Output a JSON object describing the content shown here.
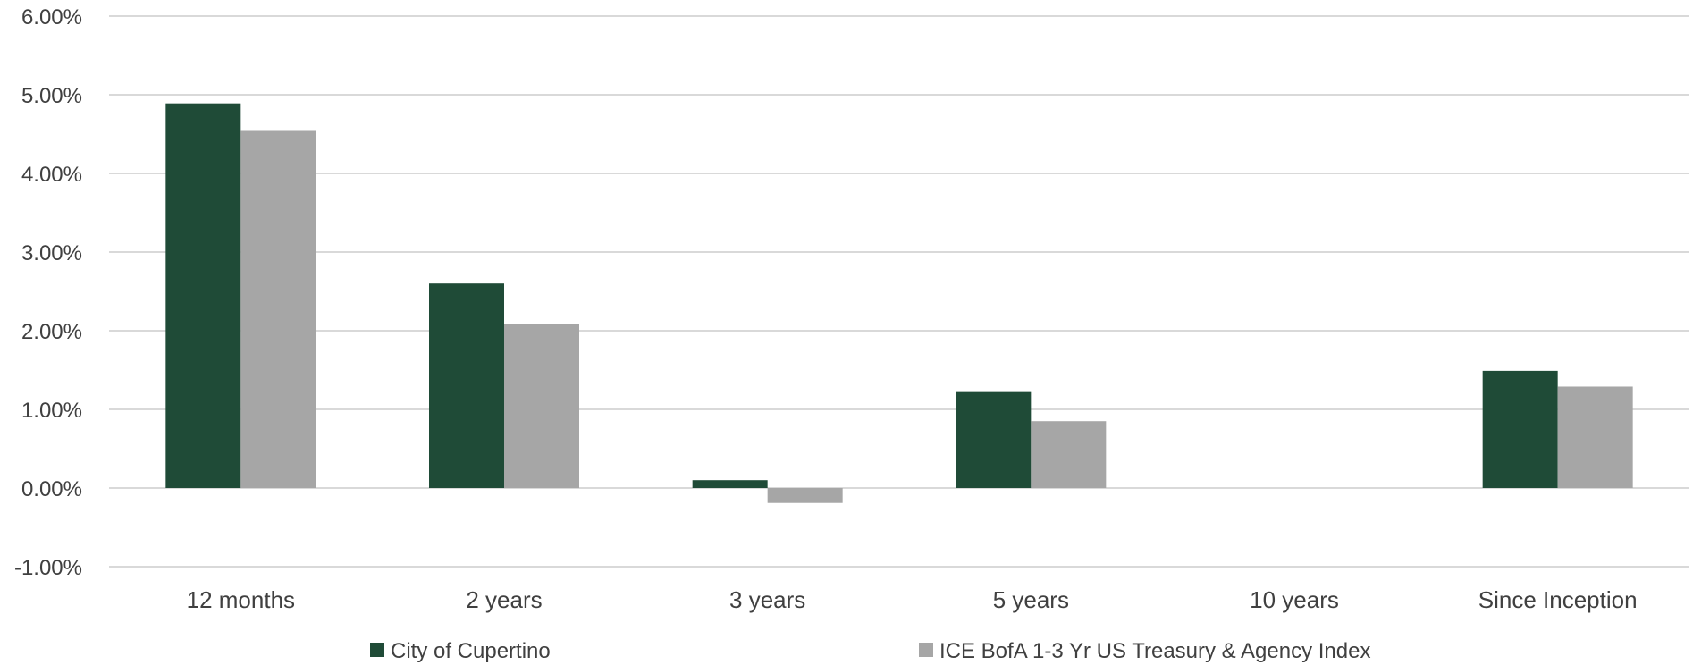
{
  "chart_data": {
    "type": "bar",
    "title": "",
    "xlabel": "",
    "ylabel": "",
    "categories": [
      "12 months",
      "2 years",
      "3 years",
      "5 years",
      "10 years",
      "Since Inception"
    ],
    "series": [
      {
        "name": "City of Cupertino",
        "color": "#1F4B37",
        "values": [
          4.89,
          2.6,
          0.1,
          1.22,
          null,
          1.49
        ]
      },
      {
        "name": "ICE BofA 1-3 Yr US Treasury & Agency Index",
        "color": "#A6A6A6",
        "values": [
          4.54,
          2.09,
          -0.19,
          0.85,
          null,
          1.29
        ]
      }
    ],
    "ylim": [
      -1,
      6
    ],
    "yticks": [
      -1,
      0,
      1,
      2,
      3,
      4,
      5,
      6
    ],
    "ytick_labels": [
      "-1.00%",
      "0.00%",
      "1.00%",
      "2.00%",
      "3.00%",
      "4.00%",
      "5.00%",
      "6.00%"
    ],
    "grid": true,
    "legend_position": "bottom"
  }
}
